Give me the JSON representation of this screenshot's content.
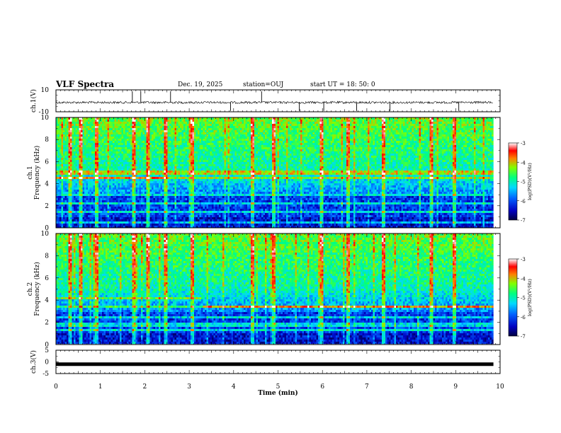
{
  "header": {
    "title": "VLF Spectra",
    "date": "Dec. 19, 2025",
    "station": "station=OUJ",
    "start": "start UT =   18: 50: 0"
  },
  "chart_data": [
    {
      "type": "line",
      "panel": "ch1-waveform",
      "ylabel": "ch.1(V)",
      "ylim": [
        -10,
        10
      ],
      "yticks": [
        "10",
        "-10"
      ],
      "x": [
        0,
        9.85
      ],
      "baseline": -1.5,
      "spikes_min": [
        1.72,
        1.91,
        2.58,
        3.93,
        4.63,
        5.48,
        6.03,
        6.77,
        7.52,
        9.07
      ]
    },
    {
      "type": "heatmap",
      "panel": "ch1-spectrogram",
      "ylabel": "ch.1\nFrequency (kHz)",
      "ylim": [
        0,
        10
      ],
      "xlim": [
        0,
        9.85
      ],
      "yticks": [
        "0",
        "2",
        "4",
        "6",
        "8",
        "10"
      ],
      "colorbar": {
        "label": "log(PSD)(V²/Hz)",
        "range": [
          -7,
          -3
        ],
        "ticks": [
          "-3",
          "-4",
          "-5",
          "-6",
          "-7"
        ]
      },
      "bands_khz": [
        0.5,
        1.5,
        2.2,
        3.0,
        4.5,
        5.0
      ],
      "sferic_min": [
        0.28,
        0.55,
        0.9,
        1.75,
        2.05,
        2.45,
        3.05,
        4.42,
        4.88,
        5.95,
        6.55,
        7.35,
        8.42,
        8.95
      ]
    },
    {
      "type": "heatmap",
      "panel": "ch2-spectrogram",
      "ylabel": "ch.2\nFrequency (kHz)",
      "ylim": [
        0,
        10
      ],
      "xlim": [
        0,
        9.85
      ],
      "yticks": [
        "0",
        "2",
        "4",
        "6",
        "8",
        "10"
      ],
      "colorbar": {
        "label": "log(PSD)(V²/Hz)",
        "range": [
          -7,
          -3
        ],
        "ticks": [
          "-3",
          "-4",
          "-5",
          "-6",
          "-7"
        ]
      },
      "bands_khz": [
        1.3,
        1.8,
        2.4,
        3.4,
        4.2
      ],
      "sferic_min": [
        0.28,
        0.55,
        0.9,
        1.75,
        2.05,
        2.45,
        3.05,
        4.42,
        4.88,
        5.95,
        6.55,
        7.35,
        8.42,
        8.95
      ]
    },
    {
      "type": "line",
      "panel": "ch3-waveform",
      "ylabel": "ch.3(V)",
      "ylim": [
        -5,
        5
      ],
      "yticks": [
        "5",
        "0",
        "-5"
      ],
      "x": [
        0,
        9.85
      ],
      "baseline": -1.0
    }
  ],
  "xaxis": {
    "label": "Time (min)",
    "range": [
      0,
      10
    ],
    "ticks": [
      "0",
      "1",
      "2",
      "3",
      "4",
      "5",
      "6",
      "7",
      "8",
      "9",
      "10"
    ]
  }
}
